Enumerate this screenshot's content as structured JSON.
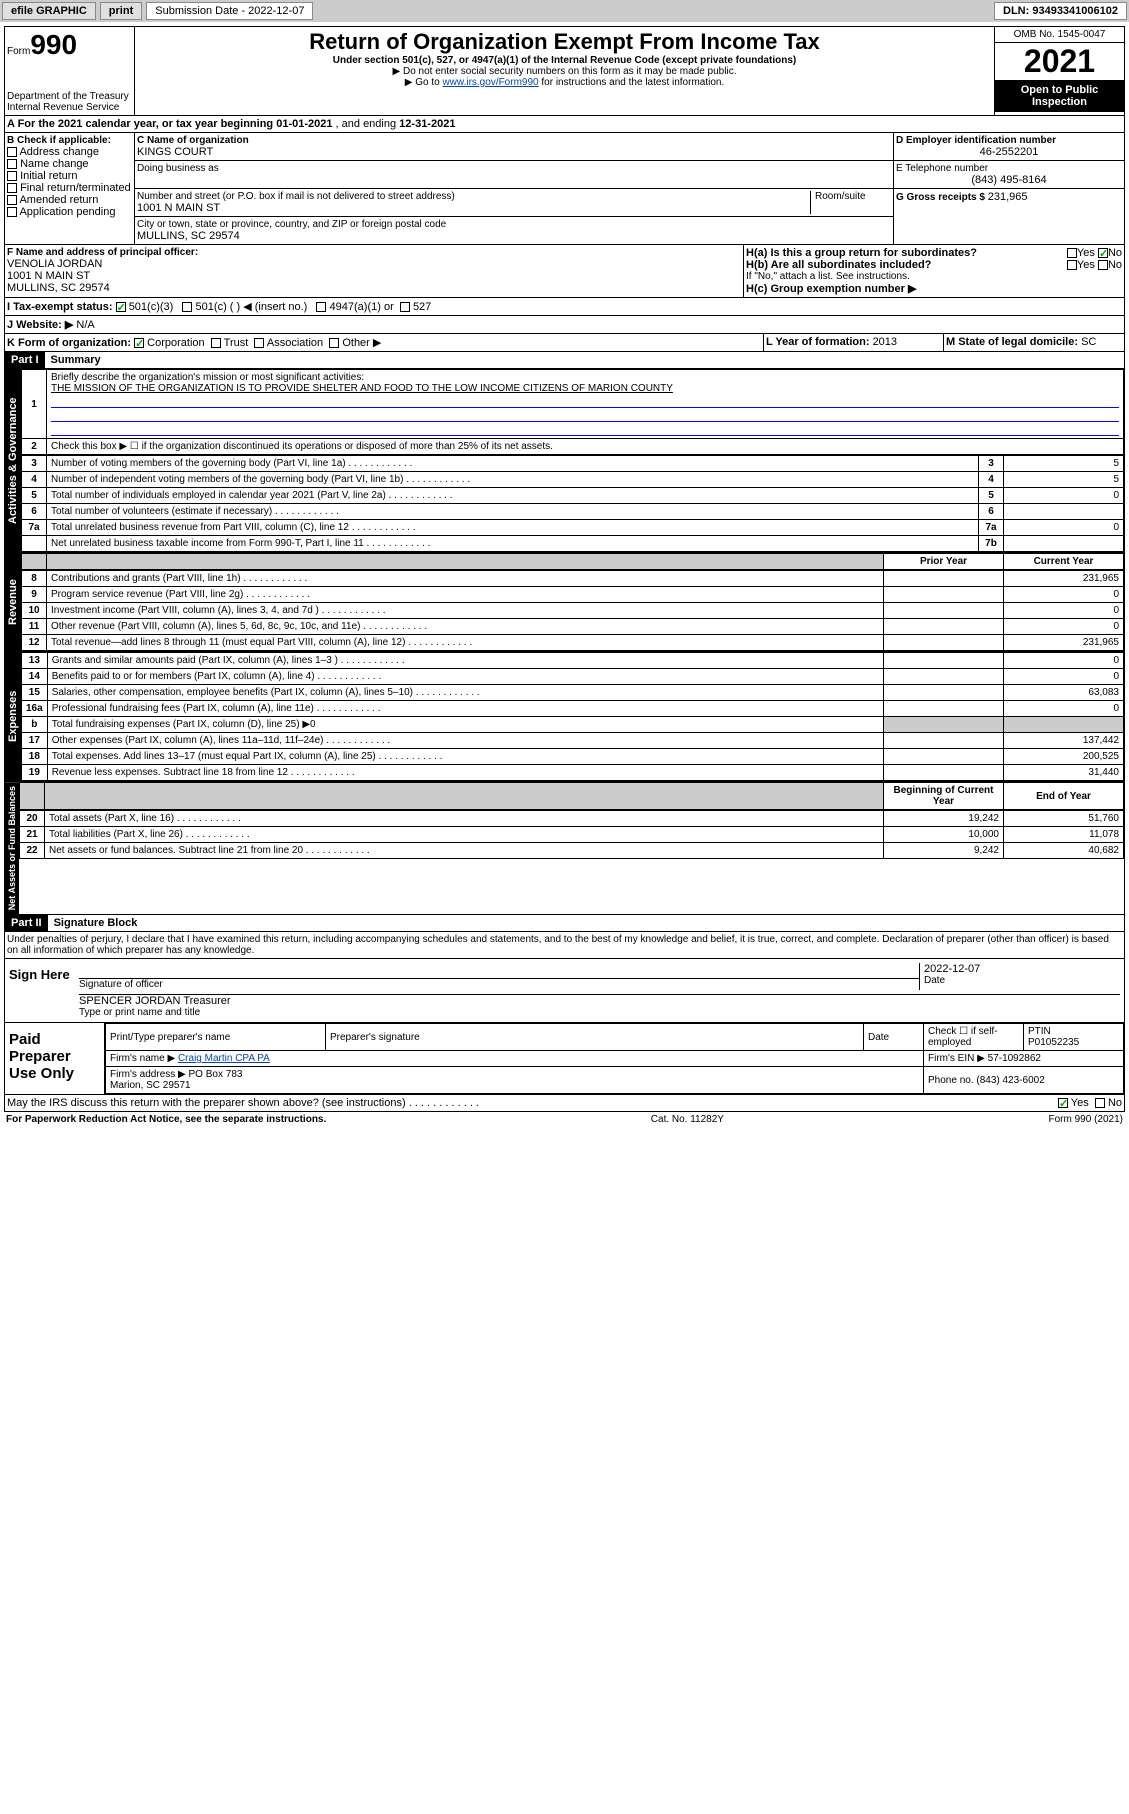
{
  "toolbar": {
    "efile": "efile GRAPHIC",
    "print": "print",
    "sub_label": "Submission Date - 2022-12-07",
    "dln": "DLN: 93493341006102"
  },
  "header": {
    "form_prefix": "Form",
    "form_num": "990",
    "dept": "Department of the Treasury",
    "irs": "Internal Revenue Service",
    "title": "Return of Organization Exempt From Income Tax",
    "sub1": "Under section 501(c), 527, or 4947(a)(1) of the Internal Revenue Code (except private foundations)",
    "sub2": "▶ Do not enter social security numbers on this form as it may be made public.",
    "sub3_pre": "▶ Go to ",
    "sub3_link": "www.irs.gov/Form990",
    "sub3_post": " for instructions and the latest information.",
    "omb": "OMB No. 1545-0047",
    "year": "2021",
    "open": "Open to Public Inspection"
  },
  "period": {
    "label_a": "A For the 2021 calendar year, or tax year beginning ",
    "begin": "01-01-2021",
    "mid": " , and ending ",
    "end": "12-31-2021"
  },
  "boxB": {
    "label": "B Check if applicable:",
    "items": [
      "Address change",
      "Name change",
      "Initial return",
      "Final return/terminated",
      "Amended return",
      "Application pending"
    ]
  },
  "boxC": {
    "name_label": "C Name of organization",
    "name": "KINGS COURT",
    "dba_label": "Doing business as",
    "addr_label": "Number and street (or P.O. box if mail is not delivered to street address)",
    "room_label": "Room/suite",
    "addr": "1001 N MAIN ST",
    "city_label": "City or town, state or province, country, and ZIP or foreign postal code",
    "city": "MULLINS, SC  29574"
  },
  "boxD": {
    "label": "D Employer identification number",
    "value": "46-2552201"
  },
  "boxE": {
    "label": "E Telephone number",
    "value": "(843) 495-8164"
  },
  "boxG": {
    "label": "G Gross receipts $ ",
    "value": "231,965"
  },
  "boxF": {
    "label": "F Name and address of principal officer:",
    "name": "VENOLIA JORDAN",
    "addr": "1001 N MAIN ST",
    "city": "MULLINS, SC  29574"
  },
  "boxH": {
    "a_label": "H(a)  Is this a group return for subordinates?",
    "b_label": "H(b)  Are all subordinates included?",
    "b_note": "If \"No,\" attach a list. See instructions.",
    "c_label": "H(c)  Group exemption number ▶",
    "yes": "Yes",
    "no": "No"
  },
  "boxI": {
    "label": "I  Tax-exempt status:",
    "opt1": "501(c)(3)",
    "opt2": "501(c) (   ) ◀ (insert no.)",
    "opt3": "4947(a)(1) or",
    "opt4": "527"
  },
  "boxJ": {
    "label": "J  Website: ▶",
    "value": "N/A"
  },
  "boxK": {
    "label": "K Form of organization:",
    "opts": [
      "Corporation",
      "Trust",
      "Association",
      "Other ▶"
    ]
  },
  "boxL": {
    "label": "L Year of formation: ",
    "value": "2013"
  },
  "boxM": {
    "label": "M State of legal domicile: ",
    "value": "SC"
  },
  "part1": {
    "header": "Part I",
    "title": "Summary",
    "side_ag": "Activities & Governance",
    "side_rev": "Revenue",
    "side_exp": "Expenses",
    "side_na": "Net Assets or Fund Balances",
    "l1_label": "Briefly describe the organization's mission or most significant activities:",
    "l1_text": "THE MISSION OF THE ORGANIZATION IS TO PROVIDE SHELTER AND FOOD TO THE LOW INCOME CITIZENS OF MARION COUNTY",
    "l2": "Check this box ▶ ☐  if the organization discontinued its operations or disposed of more than 25% of its net assets.",
    "rows_ag": [
      {
        "n": "3",
        "t": "Number of voting members of the governing body (Part VI, line 1a)",
        "k": "3",
        "v": "5"
      },
      {
        "n": "4",
        "t": "Number of independent voting members of the governing body (Part VI, line 1b)",
        "k": "4",
        "v": "5"
      },
      {
        "n": "5",
        "t": "Total number of individuals employed in calendar year 2021 (Part V, line 2a)",
        "k": "5",
        "v": "0"
      },
      {
        "n": "6",
        "t": "Total number of volunteers (estimate if necessary)",
        "k": "6",
        "v": ""
      },
      {
        "n": "7a",
        "t": "Total unrelated business revenue from Part VIII, column (C), line 12",
        "k": "7a",
        "v": "0"
      },
      {
        "n": "",
        "t": "Net unrelated business taxable income from Form 990-T, Part I, line 11",
        "k": "7b",
        "v": ""
      }
    ],
    "col_py": "Prior Year",
    "col_cy": "Current Year",
    "rows_rev": [
      {
        "n": "8",
        "t": "Contributions and grants (Part VIII, line 1h)",
        "cy": "231,965"
      },
      {
        "n": "9",
        "t": "Program service revenue (Part VIII, line 2g)",
        "cy": "0"
      },
      {
        "n": "10",
        "t": "Investment income (Part VIII, column (A), lines 3, 4, and 7d )",
        "cy": "0"
      },
      {
        "n": "11",
        "t": "Other revenue (Part VIII, column (A), lines 5, 6d, 8c, 9c, 10c, and 11e)",
        "cy": "0"
      },
      {
        "n": "12",
        "t": "Total revenue—add lines 8 through 11 (must equal Part VIII, column (A), line 12)",
        "cy": "231,965"
      }
    ],
    "rows_exp": [
      {
        "n": "13",
        "t": "Grants and similar amounts paid (Part IX, column (A), lines 1–3 )",
        "cy": "0"
      },
      {
        "n": "14",
        "t": "Benefits paid to or for members (Part IX, column (A), line 4)",
        "cy": "0"
      },
      {
        "n": "15",
        "t": "Salaries, other compensation, employee benefits (Part IX, column (A), lines 5–10)",
        "cy": "63,083"
      },
      {
        "n": "16a",
        "t": "Professional fundraising fees (Part IX, column (A), line 11e)",
        "cy": "0"
      },
      {
        "n": "b",
        "t": "Total fundraising expenses (Part IX, column (D), line 25) ▶0",
        "shade": true
      },
      {
        "n": "17",
        "t": "Other expenses (Part IX, column (A), lines 11a–11d, 11f–24e)",
        "cy": "137,442"
      },
      {
        "n": "18",
        "t": "Total expenses. Add lines 13–17 (must equal Part IX, column (A), line 25)",
        "cy": "200,525"
      },
      {
        "n": "19",
        "t": "Revenue less expenses. Subtract line 18 from line 12",
        "cy": "31,440"
      }
    ],
    "col_bcy": "Beginning of Current Year",
    "col_eoy": "End of Year",
    "rows_na": [
      {
        "n": "20",
        "t": "Total assets (Part X, line 16)",
        "py": "19,242",
        "cy": "51,760"
      },
      {
        "n": "21",
        "t": "Total liabilities (Part X, line 26)",
        "py": "10,000",
        "cy": "11,078"
      },
      {
        "n": "22",
        "t": "Net assets or fund balances. Subtract line 21 from line 20",
        "py": "9,242",
        "cy": "40,682"
      }
    ]
  },
  "part2": {
    "header": "Part II",
    "title": "Signature Block",
    "decl": "Under penalties of perjury, I declare that I have examined this return, including accompanying schedules and statements, and to the best of my knowledge and belief, it is true, correct, and complete. Declaration of preparer (other than officer) is based on all information of which preparer has any knowledge."
  },
  "sign": {
    "here": "Sign Here",
    "sig_label": "Signature of officer",
    "date_label": "Date",
    "date": "2022-12-07",
    "name": "SPENCER JORDAN Treasurer",
    "name_label": "Type or print name and title"
  },
  "paid": {
    "title": "Paid Preparer Use Only",
    "col1": "Print/Type preparer's name",
    "col2": "Preparer's signature",
    "col3": "Date",
    "col4_pre": "Check ☐ if self-employed",
    "col5_label": "PTIN",
    "ptin": "P01052235",
    "firm_name_label": "Firm's name   ▶ ",
    "firm_name": "Craig Martin CPA PA",
    "firm_ein_label": "Firm's EIN ▶ ",
    "firm_ein": "57-1092862",
    "firm_addr_label": "Firm's address ▶ ",
    "firm_addr1": "PO Box 783",
    "firm_addr2": "Marion, SC  29571",
    "phone_label": "Phone no. ",
    "phone": "(843) 423-6002"
  },
  "bottom": {
    "q": "May the IRS discuss this return with the preparer shown above? (see instructions)",
    "yes": "Yes",
    "no": "No",
    "paperwork": "For Paperwork Reduction Act Notice, see the separate instructions.",
    "cat": "Cat. No. 11282Y",
    "form": "Form 990 (2021)"
  }
}
